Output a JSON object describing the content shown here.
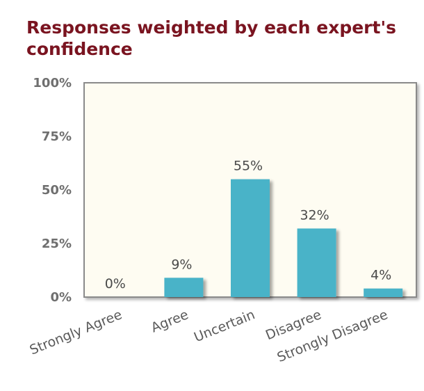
{
  "chart_data": {
    "type": "bar",
    "title": "Responses weighted by each expert's confidence",
    "categories": [
      "Strongly Agree",
      "Agree",
      "Uncertain",
      "Disagree",
      "Strongly Disagree"
    ],
    "values": [
      0,
      9,
      55,
      32,
      4
    ],
    "value_labels": [
      "0%",
      "9%",
      "55%",
      "32%",
      "4%"
    ],
    "ylim": [
      0,
      100
    ],
    "yticks": [
      0,
      25,
      50,
      75,
      100
    ],
    "ytick_labels": [
      "0%",
      "25%",
      "50%",
      "75%",
      "100%"
    ],
    "xlabel": "",
    "ylabel": "",
    "grid": false,
    "legend": "none",
    "colors": {
      "bar": "#4ab3c8",
      "plot_background": "#fefcf2",
      "frame": "#8a8a8a",
      "title": "#7a1420"
    }
  }
}
